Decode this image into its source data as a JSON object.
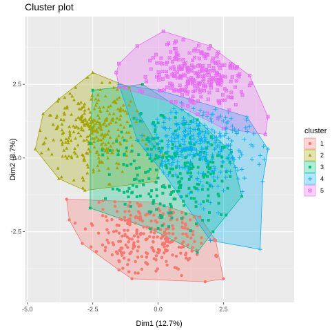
{
  "chart_data": {
    "type": "scatter",
    "title": "Cluster plot",
    "xlabel": "Dim1 (12.7%)",
    "ylabel": "Dim2 (8.7%)",
    "xlim": [
      -5.1,
      5.2
    ],
    "ylim": [
      -4.9,
      4.8
    ],
    "x_ticks": [
      -5.0,
      -2.5,
      0.0,
      2.5
    ],
    "x_tick_labels": [
      "-5.0",
      "-2.5",
      "0.0",
      "2.5"
    ],
    "y_ticks": [
      -2.5,
      0.0,
      2.5
    ],
    "y_tick_labels": [
      "-2.5",
      "0.0",
      "2.5"
    ],
    "grid": true,
    "legend": {
      "title": "cluster",
      "placement": "right"
    },
    "series": [
      {
        "name": "1",
        "color": "#F8766D",
        "shape": "circle",
        "hull": [
          [
            -3.5,
            -1.4
          ],
          [
            -0.2,
            -1.5
          ],
          [
            1.6,
            -2.0
          ],
          [
            2.2,
            -2.8
          ],
          [
            2.5,
            -4.1
          ],
          [
            1.8,
            -4.2
          ],
          [
            -1.0,
            -4.1
          ],
          [
            -1.5,
            -3.8
          ],
          [
            -2.9,
            -2.9
          ],
          [
            -3.4,
            -2.1
          ]
        ],
        "centroid": [
          -0.4,
          -2.6
        ],
        "spread": [
          1.2,
          0.75
        ],
        "n": 260,
        "seed": 11
      },
      {
        "name": "2",
        "color": "#A3A500",
        "shape": "triangle",
        "hull": [
          [
            -4.7,
            0.3
          ],
          [
            -4.4,
            1.5
          ],
          [
            -3.8,
            2.0
          ],
          [
            -2.5,
            2.9
          ],
          [
            -1.1,
            2.4
          ],
          [
            -0.8,
            1.6
          ],
          [
            0.2,
            0.1
          ],
          [
            -0.1,
            -0.8
          ],
          [
            -2.8,
            -1.1
          ],
          [
            -3.8,
            -0.7
          ]
        ],
        "centroid": [
          -2.6,
          0.9
        ],
        "spread": [
          0.85,
          0.8
        ],
        "n": 300,
        "seed": 23
      },
      {
        "name": "3",
        "color": "#00BF7D",
        "shape": "square",
        "hull": [
          [
            -2.5,
            2.3
          ],
          [
            -0.6,
            2.5
          ],
          [
            1.5,
            1.3
          ],
          [
            2.8,
            0.2
          ],
          [
            3.2,
            -1.3
          ],
          [
            2.1,
            -2.5
          ],
          [
            1.5,
            -3.2
          ],
          [
            -0.3,
            -2.4
          ],
          [
            -2.6,
            -1.7
          ],
          [
            -2.6,
            0.5
          ]
        ],
        "centroid": [
          0.6,
          -0.3
        ],
        "spread": [
          1.15,
          0.95
        ],
        "n": 260,
        "seed": 37
      },
      {
        "name": "4",
        "color": "#00B0F6",
        "shape": "plus",
        "hull": [
          [
            -1.5,
            2.5
          ],
          [
            0.0,
            2.3
          ],
          [
            1.2,
            2.0
          ],
          [
            3.4,
            1.4
          ],
          [
            4.2,
            0.3
          ],
          [
            4.0,
            -0.8
          ],
          [
            3.9,
            -3.1
          ],
          [
            2.0,
            -2.8
          ],
          [
            0.2,
            -0.5
          ],
          [
            -0.8,
            0.6
          ]
        ],
        "centroid": [
          1.6,
          0.4
        ],
        "spread": [
          1.2,
          0.75
        ],
        "n": 320,
        "seed": 53
      },
      {
        "name": "5",
        "color": "#E76BF3",
        "shape": "squarecross",
        "hull": [
          [
            -1.5,
            3.2
          ],
          [
            -0.8,
            3.8
          ],
          [
            0.2,
            4.3
          ],
          [
            2.0,
            3.8
          ],
          [
            3.5,
            2.8
          ],
          [
            4.2,
            1.4
          ],
          [
            4.1,
            0.8
          ],
          [
            2.5,
            1.0
          ],
          [
            0.5,
            1.9
          ],
          [
            -1.5,
            2.4
          ],
          [
            -1.6,
            2.9
          ]
        ],
        "centroid": [
          1.5,
          2.8
        ],
        "spread": [
          1.1,
          0.6
        ],
        "n": 260,
        "seed": 71
      }
    ]
  }
}
